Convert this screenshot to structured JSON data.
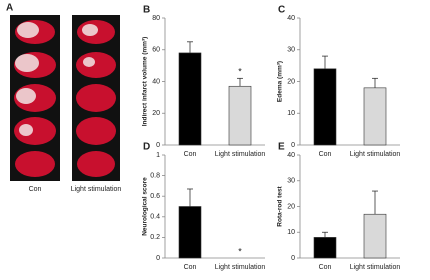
{
  "image_panel": {
    "label": "A",
    "captions": [
      "Con",
      "Light stimulation"
    ]
  },
  "chart_data": [
    {
      "type": "bar",
      "label": "B",
      "y_label": "Indirect infarct volume (mm³)",
      "categories": [
        "Con",
        "Light stimulation"
      ],
      "values": [
        58,
        37
      ],
      "errors": [
        7,
        5
      ],
      "colors": [
        "#000000",
        "#d9d9d9"
      ],
      "annotations": [
        null,
        "*"
      ],
      "ylim": [
        0,
        80
      ],
      "yticks": [
        0,
        20,
        40,
        60,
        80
      ]
    },
    {
      "type": "bar",
      "label": "C",
      "y_label": "Edema (mm³)",
      "categories": [
        "Con",
        "Light stimulation"
      ],
      "values": [
        24,
        18
      ],
      "errors": [
        4,
        3
      ],
      "colors": [
        "#000000",
        "#d9d9d9"
      ],
      "annotations": [
        null,
        null
      ],
      "ylim": [
        0,
        40
      ],
      "yticks": [
        0,
        10,
        20,
        30,
        40
      ]
    },
    {
      "type": "bar",
      "label": "D",
      "y_label": "Neurological score",
      "categories": [
        "Con",
        "Light stimulation"
      ],
      "values": [
        0.5,
        0
      ],
      "errors": [
        0.17,
        0
      ],
      "colors": [
        "#000000",
        "#d9d9d9"
      ],
      "annotations": [
        null,
        "*"
      ],
      "ylim": [
        0,
        1
      ],
      "yticks": [
        0,
        0.2,
        0.4,
        0.6,
        0.8,
        1
      ]
    },
    {
      "type": "bar",
      "label": "E",
      "y_label": "Rota-rod test",
      "categories": [
        "Con",
        "Light stimulation"
      ],
      "values": [
        8,
        17
      ],
      "errors": [
        2,
        9
      ],
      "colors": [
        "#000000",
        "#d9d9d9"
      ],
      "annotations": [
        null,
        null
      ],
      "ylim": [
        0,
        40
      ],
      "yticks": [
        0,
        10,
        20,
        30,
        40
      ]
    }
  ]
}
